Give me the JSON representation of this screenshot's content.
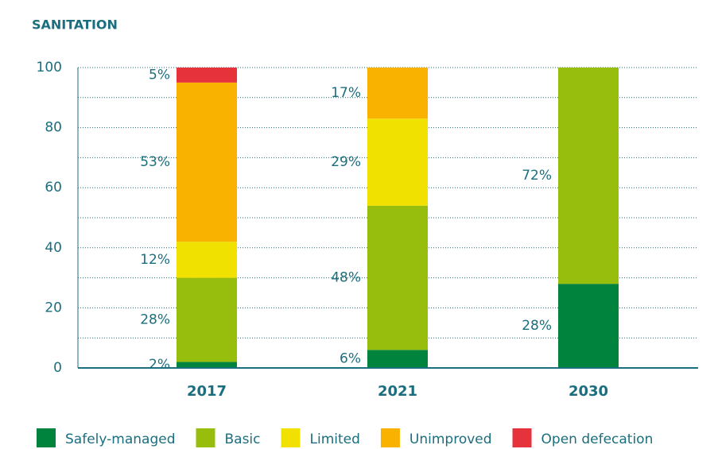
{
  "chart_data": {
    "type": "stacked_bar",
    "title": "SANITATION",
    "categories": [
      "2017",
      "2021",
      "2030"
    ],
    "series": [
      {
        "name": "Safely-managed",
        "color": "#00843d",
        "values": [
          2,
          6,
          28
        ],
        "value_labels": [
          "2%",
          "6%",
          "28%"
        ]
      },
      {
        "name": "Basic",
        "color": "#97be0d",
        "values": [
          28,
          48,
          72
        ],
        "value_labels": [
          "28%",
          "48%",
          "72%"
        ]
      },
      {
        "name": "Limited",
        "color": "#f0e100",
        "values": [
          12,
          29,
          0
        ],
        "value_labels": [
          "12%",
          "29%",
          null
        ]
      },
      {
        "name": "Unimproved",
        "color": "#f9b200",
        "values": [
          53,
          17,
          0
        ],
        "value_labels": [
          "53%",
          "17%",
          null
        ]
      },
      {
        "name": "Open defecation",
        "color": "#e5323b",
        "values": [
          5,
          0,
          0
        ],
        "value_labels": [
          "5%",
          null,
          null
        ]
      }
    ],
    "ylim": [
      0,
      100
    ],
    "yticks": [
      0,
      20,
      40,
      60,
      80,
      100
    ],
    "minor_yticks": [
      10,
      30,
      50,
      70,
      90
    ],
    "grid": true,
    "legend": "bottom"
  }
}
